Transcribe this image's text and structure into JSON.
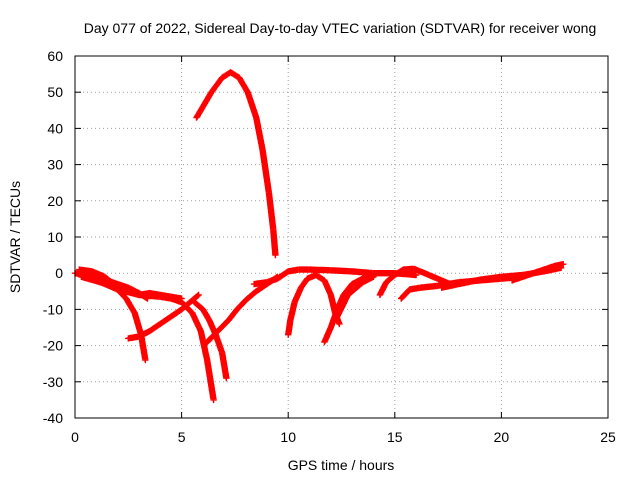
{
  "chart_data": {
    "type": "scatter",
    "title": "Day 077 of 2022, Sidereal Day-to-day VTEC variation (SDTVAR) for receiver wong",
    "xlabel": "GPS time / hours",
    "ylabel": "SDTVAR / TECUs",
    "xlim": [
      0,
      25
    ],
    "ylim": [
      -40,
      60
    ],
    "xticks": [
      0,
      5,
      10,
      15,
      20,
      25
    ],
    "yticks": [
      -40,
      -30,
      -20,
      -10,
      0,
      10,
      20,
      30,
      40,
      50,
      60
    ],
    "grid": true,
    "marker": "plus",
    "color": "#ff0000",
    "series": [
      {
        "name": "arc-high",
        "points": [
          [
            5.7,
            43
          ],
          [
            6.0,
            46
          ],
          [
            6.4,
            50
          ],
          [
            6.9,
            54
          ],
          [
            7.3,
            55.5
          ],
          [
            7.7,
            54
          ],
          [
            8.1,
            50
          ],
          [
            8.5,
            43
          ],
          [
            8.8,
            34
          ],
          [
            9.1,
            22
          ],
          [
            9.3,
            12
          ],
          [
            9.4,
            5
          ]
        ]
      },
      {
        "name": "arc-a",
        "points": [
          [
            0.0,
            0
          ],
          [
            0.5,
            -0.5
          ],
          [
            1.0,
            -1
          ],
          [
            1.5,
            -2
          ],
          [
            2.0,
            -3
          ],
          [
            2.5,
            -4
          ],
          [
            3.0,
            -5.5
          ],
          [
            3.4,
            -7
          ]
        ]
      },
      {
        "name": "arc-b",
        "points": [
          [
            0.3,
            -1
          ],
          [
            0.9,
            -2
          ],
          [
            1.5,
            -3
          ],
          [
            2.0,
            -4.5
          ],
          [
            2.4,
            -7
          ],
          [
            2.8,
            -11
          ],
          [
            3.1,
            -17
          ],
          [
            3.3,
            -24
          ]
        ]
      },
      {
        "name": "arc-c",
        "points": [
          [
            0.2,
            1
          ],
          [
            0.8,
            0.5
          ],
          [
            1.4,
            -1
          ],
          [
            1.8,
            -3
          ],
          [
            2.2,
            -5
          ]
        ]
      },
      {
        "name": "arc-d",
        "points": [
          [
            2.0,
            -4
          ],
          [
            2.5,
            -5
          ],
          [
            3.0,
            -6
          ],
          [
            3.5,
            -5.5
          ],
          [
            4.0,
            -6
          ],
          [
            4.5,
            -6.5
          ],
          [
            5.0,
            -7
          ]
        ]
      },
      {
        "name": "arc-e",
        "points": [
          [
            1.0,
            -2
          ],
          [
            2.0,
            -4.5
          ],
          [
            3.0,
            -6
          ],
          [
            4.0,
            -6.5
          ],
          [
            4.5,
            -7
          ],
          [
            5.0,
            -8
          ],
          [
            5.5,
            -11
          ],
          [
            5.9,
            -16
          ],
          [
            6.2,
            -24
          ],
          [
            6.5,
            -35
          ]
        ]
      },
      {
        "name": "arc-f",
        "points": [
          [
            2.5,
            -18
          ],
          [
            3.0,
            -17.5
          ],
          [
            3.5,
            -16
          ],
          [
            4.0,
            -14
          ],
          [
            4.5,
            -12
          ],
          [
            5.0,
            -10
          ],
          [
            5.5,
            -7.5
          ],
          [
            5.8,
            -6
          ]
        ]
      },
      {
        "name": "arc-g",
        "points": [
          [
            5.6,
            -8
          ],
          [
            6.0,
            -10
          ],
          [
            6.3,
            -13
          ],
          [
            6.6,
            -17
          ],
          [
            6.9,
            -22
          ],
          [
            7.1,
            -29
          ]
        ]
      },
      {
        "name": "arc-h",
        "points": [
          [
            6.2,
            -19
          ],
          [
            6.7,
            -16
          ],
          [
            7.2,
            -13
          ],
          [
            7.6,
            -10
          ],
          [
            8.0,
            -7.5
          ],
          [
            8.5,
            -5
          ],
          [
            9.0,
            -3
          ],
          [
            9.5,
            -1
          ]
        ]
      },
      {
        "name": "arc-i",
        "points": [
          [
            8.4,
            -3
          ],
          [
            9.0,
            -2.5
          ],
          [
            9.5,
            -1.5
          ],
          [
            10.0,
            0.5
          ],
          [
            10.5,
            1
          ],
          [
            11.0,
            1
          ],
          [
            12.0,
            0.8
          ],
          [
            13.0,
            0.5
          ],
          [
            14.0,
            0
          ],
          [
            15.0,
            0
          ],
          [
            16.0,
            -0.5
          ]
        ]
      },
      {
        "name": "arc-j",
        "points": [
          [
            10.0,
            -17
          ],
          [
            10.1,
            -13
          ],
          [
            10.3,
            -8
          ],
          [
            10.6,
            -4
          ],
          [
            10.9,
            -1.5
          ],
          [
            11.3,
            -0.5
          ],
          [
            11.7,
            -2
          ],
          [
            12.0,
            -6
          ],
          [
            12.2,
            -11
          ],
          [
            12.4,
            -14
          ]
        ]
      },
      {
        "name": "arc-k",
        "points": [
          [
            11.7,
            -19
          ],
          [
            12.0,
            -15
          ],
          [
            12.3,
            -10
          ],
          [
            12.6,
            -6
          ],
          [
            13.0,
            -3
          ],
          [
            13.5,
            -1.5
          ],
          [
            14.0,
            -0.5
          ]
        ]
      },
      {
        "name": "arc-l",
        "points": [
          [
            12.3,
            -12
          ],
          [
            12.8,
            -6
          ],
          [
            13.5,
            -2.5
          ],
          [
            14.0,
            -1
          ]
        ]
      },
      {
        "name": "arc-m",
        "points": [
          [
            14.3,
            -6
          ],
          [
            14.6,
            -2.5
          ],
          [
            15.0,
            -0.5
          ],
          [
            15.4,
            1
          ],
          [
            15.9,
            1.2
          ],
          [
            16.4,
            0
          ],
          [
            17.0,
            -1.5
          ],
          [
            17.6,
            -3
          ]
        ]
      },
      {
        "name": "arc-n",
        "points": [
          [
            15.3,
            -7
          ],
          [
            15.7,
            -4.5
          ],
          [
            16.2,
            -4
          ],
          [
            17.0,
            -3.5
          ],
          [
            18.0,
            -2.5
          ],
          [
            19.0,
            -2
          ],
          [
            20.0,
            -1.5
          ],
          [
            21.0,
            -1
          ]
        ]
      },
      {
        "name": "arc-o",
        "points": [
          [
            17.2,
            -4
          ],
          [
            18.0,
            -3
          ],
          [
            19.0,
            -1.8
          ],
          [
            20.0,
            -1
          ],
          [
            21.0,
            -0.5
          ],
          [
            22.0,
            0.5
          ],
          [
            22.8,
            1.5
          ]
        ]
      },
      {
        "name": "arc-p",
        "points": [
          [
            20.5,
            -2
          ],
          [
            21.0,
            -1
          ],
          [
            21.5,
            0
          ],
          [
            22.0,
            1
          ],
          [
            22.5,
            2
          ],
          [
            22.9,
            2.5
          ]
        ]
      }
    ]
  }
}
